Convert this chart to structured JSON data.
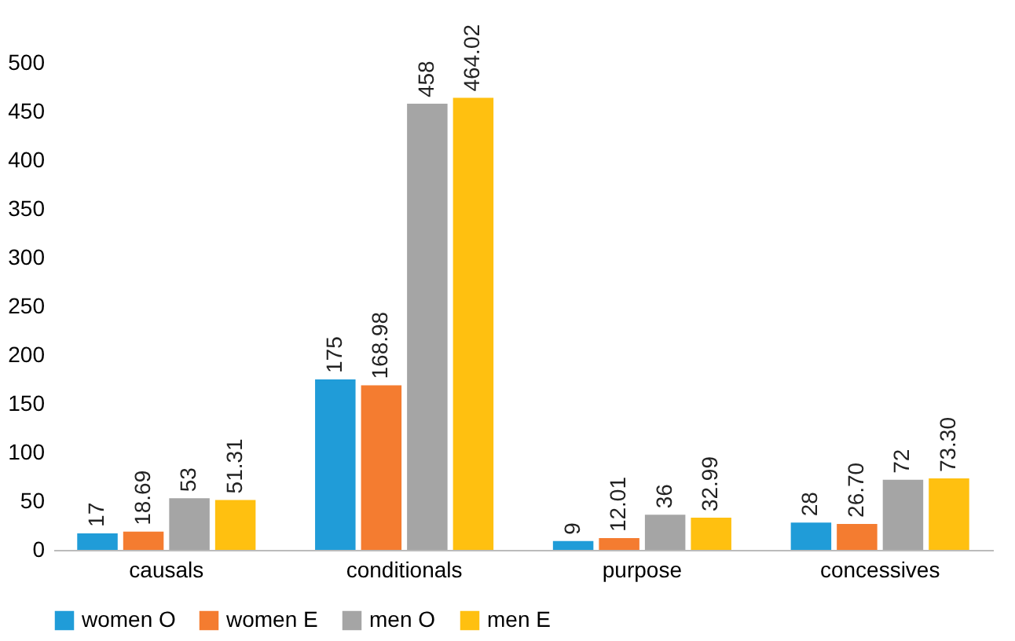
{
  "chart_data": {
    "type": "bar",
    "categories": [
      "causals",
      "conditionals",
      "purpose",
      "concessives"
    ],
    "series": [
      {
        "name": "women O",
        "color": "#209cd8",
        "values": [
          17,
          175,
          9,
          28
        ],
        "value_labels": [
          "17",
          "175",
          "9",
          "28"
        ]
      },
      {
        "name": "women E",
        "color": "#f47c30",
        "values": [
          18.69,
          168.98,
          12.01,
          26.7
        ],
        "value_labels": [
          "18.69",
          "168.98",
          "12.01",
          "26.70"
        ]
      },
      {
        "name": "men O",
        "color": "#a5a5a5",
        "values": [
          53,
          458,
          36,
          72
        ],
        "value_labels": [
          "53",
          "458",
          "36",
          "72"
        ]
      },
      {
        "name": "men E",
        "color": "#ffc010",
        "values": [
          51.31,
          464.02,
          32.99,
          73.3
        ],
        "value_labels": [
          "51.31",
          "464.02",
          "32.99",
          "73.30"
        ]
      }
    ],
    "ylim": [
      0,
      500
    ],
    "yticks": [
      0,
      50,
      100,
      150,
      200,
      250,
      300,
      350,
      400,
      450,
      500
    ],
    "grid": false,
    "legend": "bottom"
  }
}
